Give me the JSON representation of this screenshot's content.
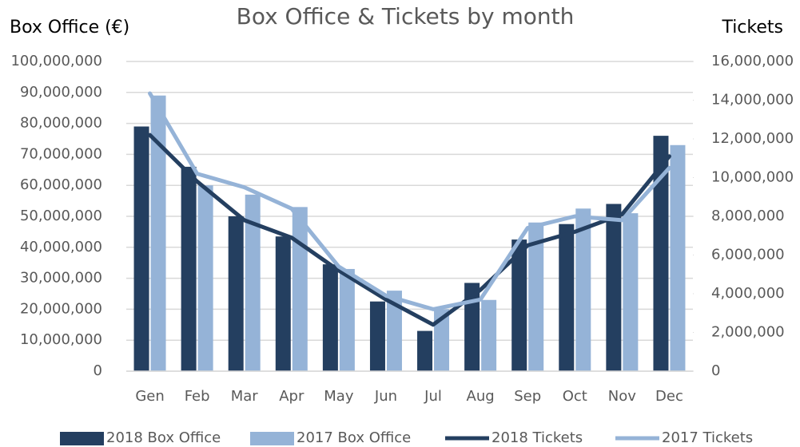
{
  "chart_data": {
    "type": "combo",
    "title": "Box Office & Tickets by month",
    "y_label": "Box Office (€)",
    "y2_label": "Tickets",
    "categories": [
      "Gen",
      "Feb",
      "Mar",
      "Apr",
      "May",
      "Jun",
      "Jul",
      "Aug",
      "Sep",
      "Oct",
      "Nov",
      "Dec"
    ],
    "series": [
      {
        "name": "2018 Box Office",
        "type": "bar",
        "color": "#243f60",
        "values": [
          79000000,
          66000000,
          50000000,
          43500000,
          34500000,
          22500000,
          13000000,
          28500000,
          42500000,
          47500000,
          54000000,
          76000000
        ]
      },
      {
        "name": "2017 Box Office",
        "type": "bar",
        "color": "#95b3d7",
        "values": [
          89000000,
          60000000,
          57000000,
          53000000,
          33000000,
          26000000,
          20000000,
          23000000,
          48000000,
          52500000,
          51000000,
          73000000
        ]
      },
      {
        "name": "2018 Tickets",
        "type": "line",
        "axis": "y2",
        "color": "#243f60",
        "values": [
          12200000,
          9800000,
          7800000,
          6900000,
          5200000,
          3700000,
          2400000,
          4200000,
          6500000,
          7200000,
          8100000,
          11100000
        ]
      },
      {
        "name": "2017 Tickets",
        "type": "line",
        "axis": "y2",
        "color": "#95b3d7",
        "values": [
          14350000,
          10200000,
          9500000,
          8400000,
          5400000,
          3900000,
          3200000,
          3700000,
          7400000,
          8000000,
          7800000,
          10500000
        ]
      }
    ],
    "ylim": [
      0,
      100000000
    ],
    "yticks": [
      0,
      {
        "value": 10000000,
        "label": "10,000,000"
      },
      {
        "value": 20000000,
        "label": "20,000,000"
      },
      {
        "value": 30000000,
        "label": "30,000,000"
      },
      {
        "value": 40000000,
        "label": "40,000,000"
      },
      {
        "value": 50000000,
        "label": "50,000,000"
      },
      {
        "value": 60000000,
        "label": "60,000,000"
      },
      {
        "value": 70000000,
        "label": "70,000,000"
      },
      {
        "value": 80000000,
        "label": "80,000,000"
      },
      {
        "value": 90000000,
        "label": "90,000,000"
      },
      {
        "value": 100000000,
        "label": "100,000,000"
      }
    ],
    "y2lim": [
      0,
      16000000
    ],
    "y2ticks": [
      0,
      {
        "value": 2000000,
        "label": "2,000,000"
      },
      {
        "value": 4000000,
        "label": "4,000,000"
      },
      {
        "value": 6000000,
        "label": "6,000,000"
      },
      {
        "value": 8000000,
        "label": "8,000,000"
      },
      {
        "value": 10000000,
        "label": "10,000,000"
      },
      {
        "value": 12000000,
        "label": "12,000,000"
      },
      {
        "value": 14000000,
        "label": "14,000,000"
      },
      {
        "value": 16000000,
        "label": "16,000,000"
      }
    ],
    "grid": true,
    "legend": "bottom"
  }
}
